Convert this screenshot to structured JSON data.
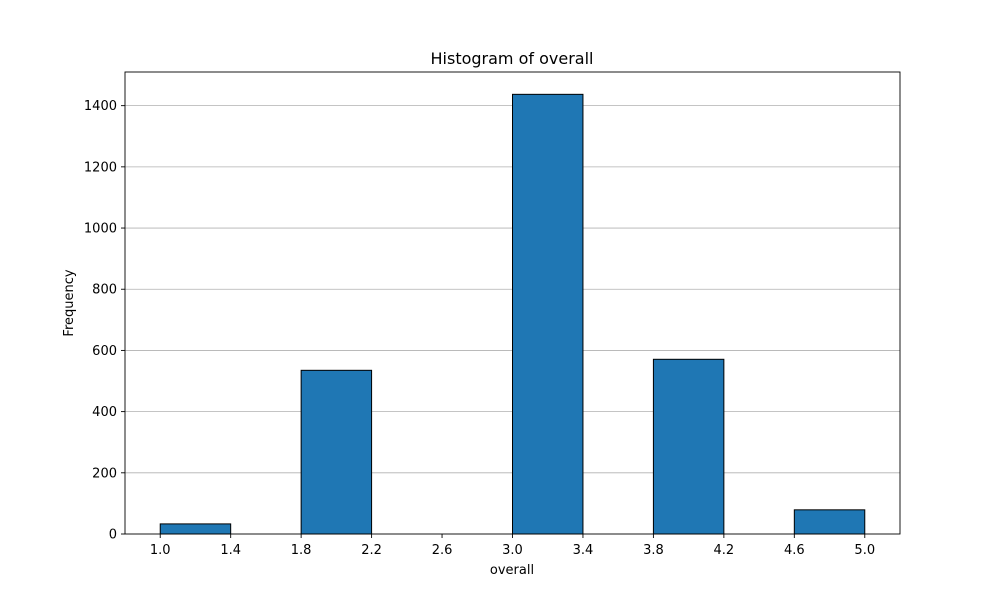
{
  "chart_data": {
    "type": "bar",
    "title": "Histogram of overall",
    "xlabel": "overall",
    "ylabel": "Frequency",
    "bins": [
      {
        "start": 1.0,
        "end": 1.4,
        "value": 33
      },
      {
        "start": 1.4,
        "end": 1.8,
        "value": 0
      },
      {
        "start": 1.8,
        "end": 2.2,
        "value": 535
      },
      {
        "start": 2.2,
        "end": 2.6,
        "value": 0
      },
      {
        "start": 2.6,
        "end": 3.0,
        "value": 0
      },
      {
        "start": 3.0,
        "end": 3.4,
        "value": 1437
      },
      {
        "start": 3.4,
        "end": 3.8,
        "value": 0
      },
      {
        "start": 3.8,
        "end": 4.2,
        "value": 571
      },
      {
        "start": 4.2,
        "end": 4.6,
        "value": 0
      },
      {
        "start": 4.6,
        "end": 5.0,
        "value": 79
      }
    ],
    "xticks": [
      "1.0",
      "1.4",
      "1.8",
      "2.2",
      "2.6",
      "3.0",
      "3.4",
      "3.8",
      "4.2",
      "4.6",
      "5.0"
    ],
    "yticks": [
      0,
      200,
      400,
      600,
      800,
      1000,
      1200,
      1400
    ],
    "xlim": [
      0.8,
      5.2
    ],
    "ylim": [
      0,
      1510
    ],
    "grid": "y-only",
    "legend": "none",
    "colors": {
      "bar": "#1f77b4",
      "edge": "#000000",
      "grid": "#b0b0b0"
    }
  }
}
